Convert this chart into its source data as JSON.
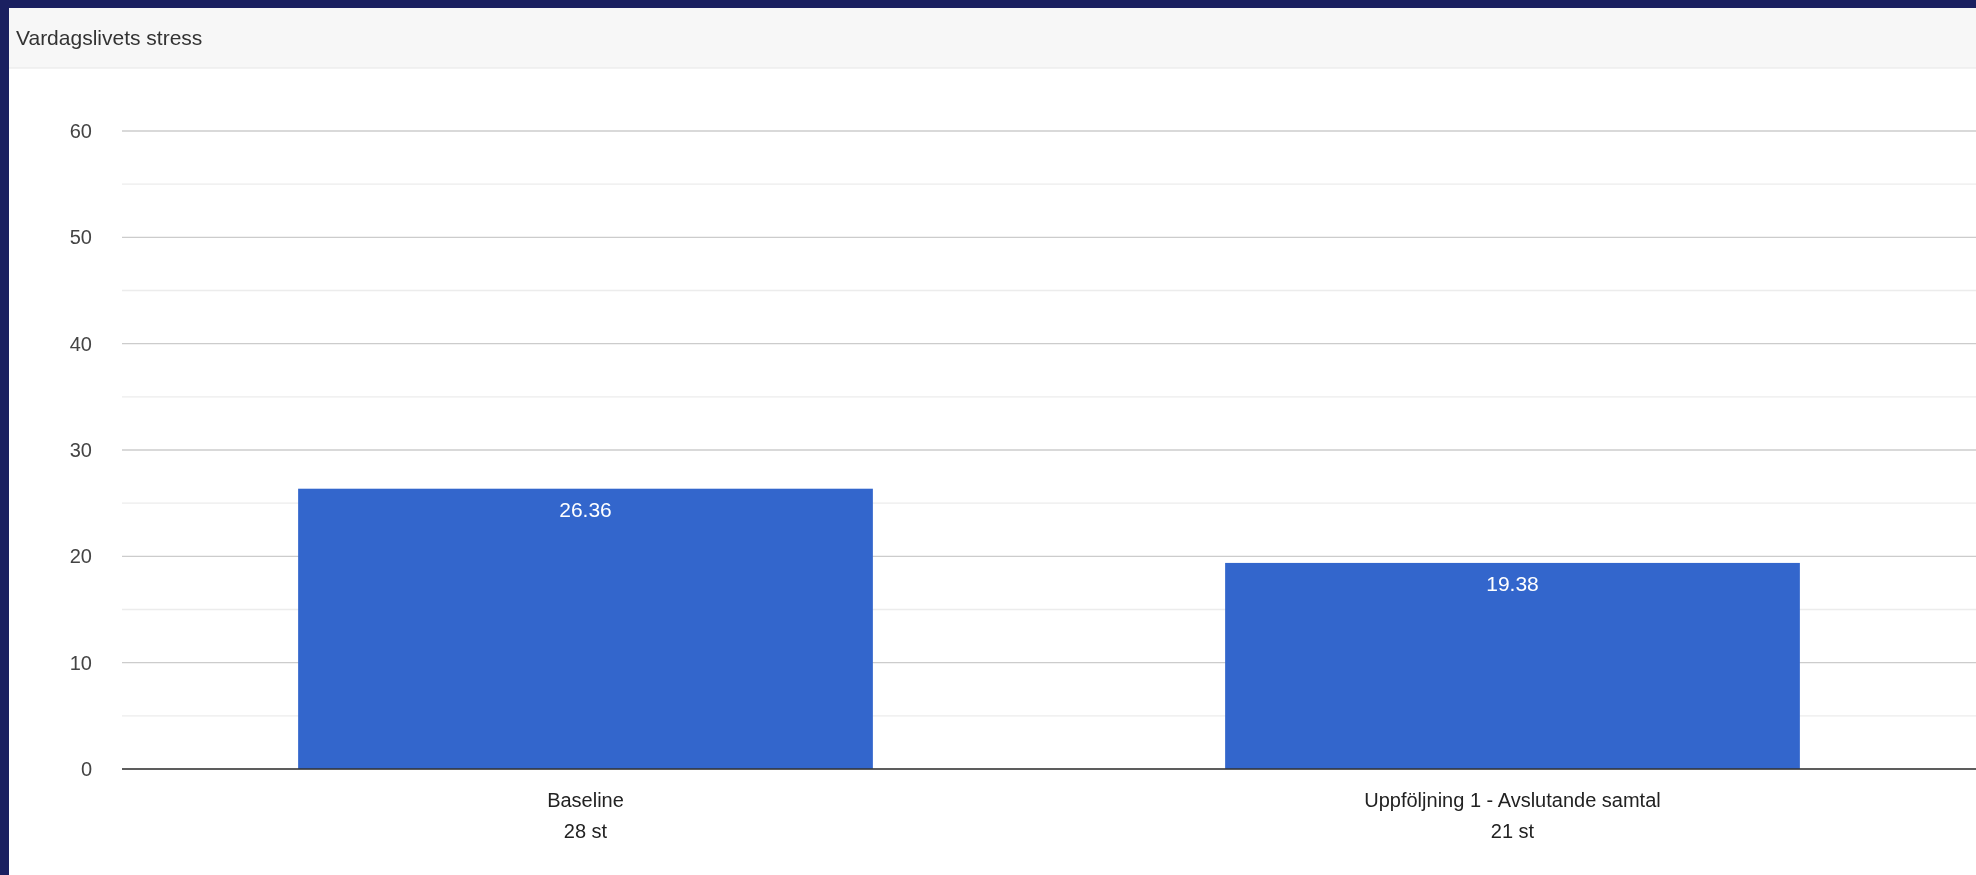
{
  "chart_data": {
    "type": "bar",
    "title": "Vardagslivets stress",
    "categories": [
      "Baseline\n28 st",
      "Uppföljning 1 - Avslutande samtal\n21 st"
    ],
    "values": [
      26.36,
      19.38
    ],
    "color": "#3366cc",
    "ylim": [
      0,
      60
    ],
    "yticks": [
      0,
      {
        "value": 5,
        "label": null
      },
      10,
      {
        "value": 15,
        "label": null
      },
      20,
      {
        "value": 25,
        "label": null
      },
      30,
      {
        "value": 35,
        "label": null
      },
      40,
      {
        "value": 45,
        "label": null
      },
      50,
      {
        "value": 55,
        "label": null
      },
      60
    ],
    "grid": "y",
    "data_labels": true
  }
}
